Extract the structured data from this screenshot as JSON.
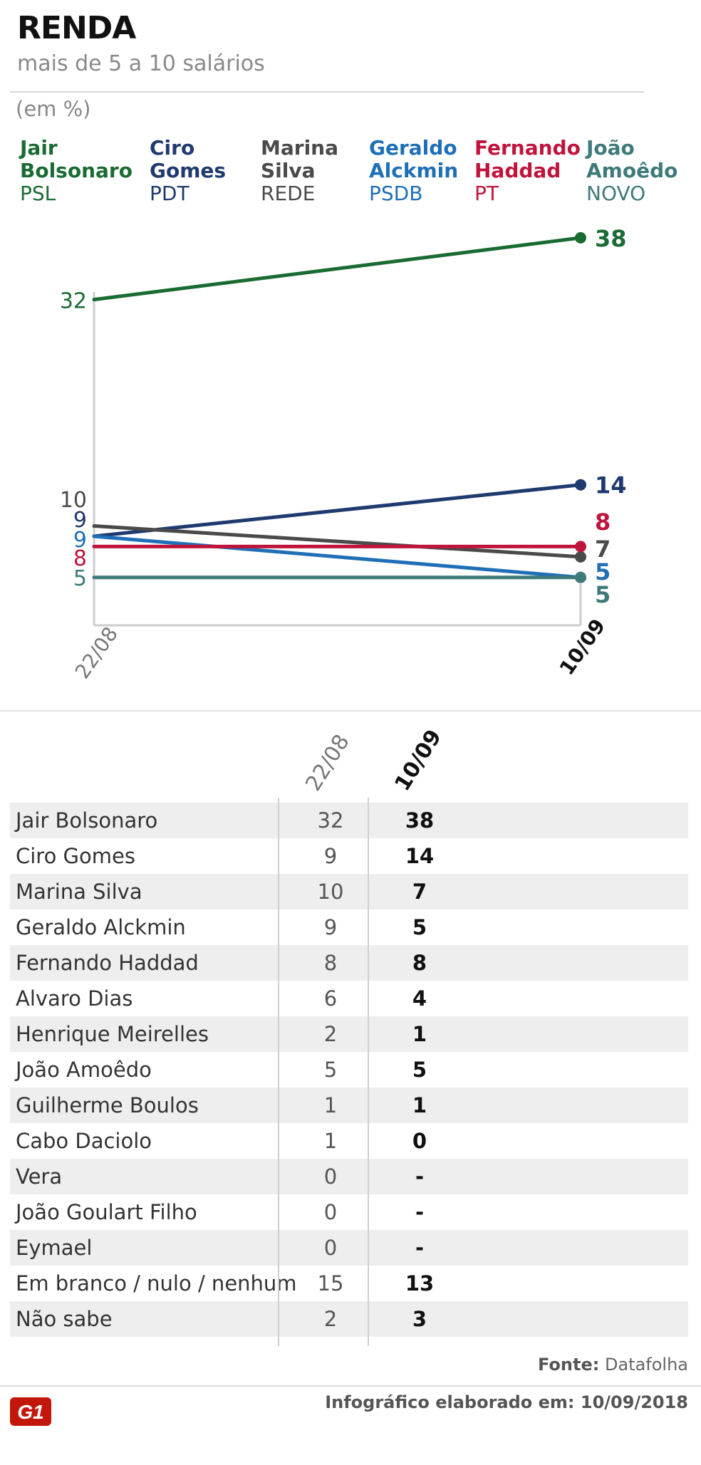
{
  "header": {
    "title": "RENDA",
    "subtitle": "mais de 5 a 10 salários",
    "unit": "(em %)"
  },
  "legend": [
    {
      "name_line1": "Jair",
      "name_line2": "Bolsonaro",
      "party": "PSL",
      "color": "#1a6b33"
    },
    {
      "name_line1": "Ciro",
      "name_line2": "Gomes",
      "party": "PDT",
      "color": "#1f3a6e"
    },
    {
      "name_line1": "Marina",
      "name_line2": "Silva",
      "party": "REDE",
      "color": "#4a4a4a"
    },
    {
      "name_line1": "Geraldo",
      "name_line2": "Alckmin",
      "party": "PSDB",
      "color": "#1f6fb6"
    },
    {
      "name_line1": "Fernando",
      "name_line2": "Haddad",
      "party": "PT",
      "color": "#c0143c"
    },
    {
      "name_line1": "João",
      "name_line2": "Amoêdo",
      "party": "NOVO",
      "color": "#3f7a7a"
    }
  ],
  "chart_data": {
    "type": "line",
    "x": [
      "22/08",
      "10/09"
    ],
    "series": [
      {
        "name": "Jair Bolsonaro",
        "values": [
          32,
          38
        ],
        "color": "#1a6b33"
      },
      {
        "name": "Ciro Gomes",
        "values": [
          9,
          14
        ],
        "color": "#1f3a6e"
      },
      {
        "name": "Marina Silva",
        "values": [
          10,
          7
        ],
        "color": "#4a4a4a"
      },
      {
        "name": "Geraldo Alckmin",
        "values": [
          9,
          5
        ],
        "color": "#1f6fb6"
      },
      {
        "name": "Fernando Haddad",
        "values": [
          8,
          8
        ],
        "color": "#c0143c"
      },
      {
        "name": "João Amoêdo",
        "values": [
          5,
          5
        ],
        "color": "#3f7a7a"
      }
    ],
    "ylim": [
      0,
      40
    ]
  },
  "table": {
    "col1": "22/08",
    "col2": "10/09",
    "rows": [
      {
        "candidate": "Jair Bolsonaro",
        "v1": "32",
        "v2": "38"
      },
      {
        "candidate": "Ciro Gomes",
        "v1": "9",
        "v2": "14"
      },
      {
        "candidate": "Marina Silva",
        "v1": "10",
        "v2": "7"
      },
      {
        "candidate": "Geraldo Alckmin",
        "v1": "9",
        "v2": "5"
      },
      {
        "candidate": "Fernando Haddad",
        "v1": "8",
        "v2": "8"
      },
      {
        "candidate": "Alvaro Dias",
        "v1": "6",
        "v2": "4"
      },
      {
        "candidate": "Henrique Meirelles",
        "v1": "2",
        "v2": "1"
      },
      {
        "candidate": "João Amoêdo",
        "v1": "5",
        "v2": "5"
      },
      {
        "candidate": "Guilherme Boulos",
        "v1": "1",
        "v2": "1"
      },
      {
        "candidate": "Cabo Daciolo",
        "v1": "1",
        "v2": "0"
      },
      {
        "candidate": "Vera",
        "v1": "0",
        "v2": "-"
      },
      {
        "candidate": "João Goulart Filho",
        "v1": "0",
        "v2": "-"
      },
      {
        "candidate": "Eymael",
        "v1": "0",
        "v2": "-"
      },
      {
        "candidate": "Em branco / nulo / nenhum",
        "v1": "15",
        "v2": "13"
      },
      {
        "candidate": "Não sabe",
        "v1": "2",
        "v2": "3"
      }
    ]
  },
  "footer": {
    "source_label": "Fonte:",
    "source": "Datafolha",
    "credit_label": "Infográfico elaborado em:",
    "credit_date": "10/09/2018",
    "logo_text": "G1",
    "logo_color": "#c4170c"
  }
}
